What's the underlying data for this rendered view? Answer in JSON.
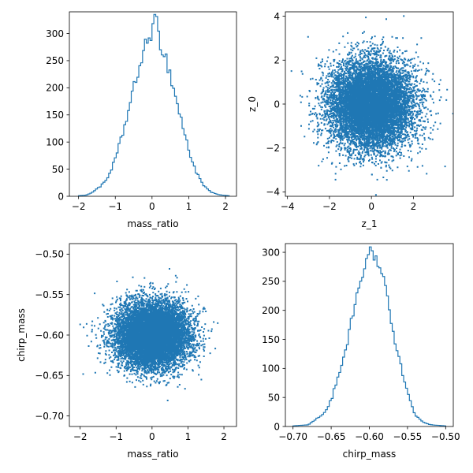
{
  "chart_data": [
    {
      "id": "mass-ratio-hist",
      "type": "histogram",
      "color": "#1f77b4",
      "xlabel": "mass_ratio",
      "ylabel": "",
      "xlim": [
        -2.25,
        2.3
      ],
      "ylim": [
        0,
        340
      ],
      "xticks": [
        -2,
        -1,
        0,
        1,
        2
      ],
      "yticks": [
        0,
        50,
        100,
        150,
        200,
        250,
        300
      ],
      "grid": false,
      "anchors": [
        [
          -2.0,
          1
        ],
        [
          -1.8,
          2
        ],
        [
          -1.6,
          8
        ],
        [
          -1.5,
          15
        ],
        [
          -1.4,
          18
        ],
        [
          -1.2,
          35
        ],
        [
          -1.0,
          68
        ],
        [
          -0.8,
          115
        ],
        [
          -0.6,
          168
        ],
        [
          -0.4,
          225
        ],
        [
          -0.2,
          270
        ],
        [
          0.0,
          310
        ],
        [
          0.1,
          322
        ],
        [
          0.2,
          290
        ],
        [
          0.4,
          250
        ],
        [
          0.6,
          195
        ],
        [
          0.8,
          140
        ],
        [
          1.0,
          85
        ],
        [
          1.2,
          45
        ],
        [
          1.4,
          20
        ],
        [
          1.6,
          8
        ],
        [
          1.8,
          3
        ],
        [
          2.1,
          1
        ]
      ]
    },
    {
      "id": "z1-z0-scatter",
      "type": "scatter",
      "color": "#1f77b4",
      "xlabel": "z_1",
      "ylabel": "z_0",
      "xlim": [
        -4.1,
        3.9
      ],
      "ylim": [
        -4.2,
        4.2
      ],
      "xticks": [
        -4,
        -2,
        0,
        2
      ],
      "yticks": [
        -4,
        -2,
        0,
        2,
        4
      ],
      "grid": false,
      "center": [
        0,
        0
      ],
      "spread": [
        1,
        1
      ],
      "n_points": 10000
    },
    {
      "id": "mass-ratio-chirp-scatter",
      "type": "scatter",
      "color": "#1f77b4",
      "xlabel": "mass_ratio",
      "ylabel": "chirp_mass",
      "xlim": [
        -2.3,
        2.35
      ],
      "ylim": [
        -0.713,
        -0.487
      ],
      "xticks": [
        -2,
        -1,
        0,
        1,
        2
      ],
      "yticks": [
        -0.7,
        -0.65,
        -0.6,
        -0.55,
        -0.5
      ],
      "ytick_labels": [
        "−0.70",
        "−0.65",
        "−0.60",
        "−0.55",
        "−0.50"
      ],
      "grid": false,
      "center": [
        0,
        -0.6
      ],
      "spread": [
        0.5,
        0.02
      ],
      "n_points": 10000
    },
    {
      "id": "chirp-mass-hist",
      "type": "histogram",
      "color": "#1f77b4",
      "xlabel": "chirp_mass",
      "ylabel": "",
      "xlim": [
        -0.71,
        -0.49
      ],
      "ylim": [
        0,
        315
      ],
      "xticks": [
        -0.7,
        -0.65,
        -0.6,
        -0.55,
        -0.5
      ],
      "xtick_labels": [
        "−0.70",
        "−0.65",
        "−0.60",
        "−0.55",
        "−0.50"
      ],
      "yticks": [
        0,
        50,
        100,
        150,
        200,
        250,
        300
      ],
      "grid": false,
      "anchors": [
        [
          -0.7,
          1
        ],
        [
          -0.68,
          3
        ],
        [
          -0.66,
          22
        ],
        [
          -0.65,
          45
        ],
        [
          -0.64,
          90
        ],
        [
          -0.63,
          140
        ],
        [
          -0.62,
          205
        ],
        [
          -0.61,
          250
        ],
        [
          -0.6,
          290
        ],
        [
          -0.595,
          300
        ],
        [
          -0.59,
          280
        ],
        [
          -0.58,
          240
        ],
        [
          -0.57,
          170
        ],
        [
          -0.56,
          110
        ],
        [
          -0.55,
          60
        ],
        [
          -0.54,
          20
        ],
        [
          -0.53,
          8
        ],
        [
          -0.52,
          3
        ],
        [
          -0.5,
          1
        ]
      ]
    }
  ]
}
